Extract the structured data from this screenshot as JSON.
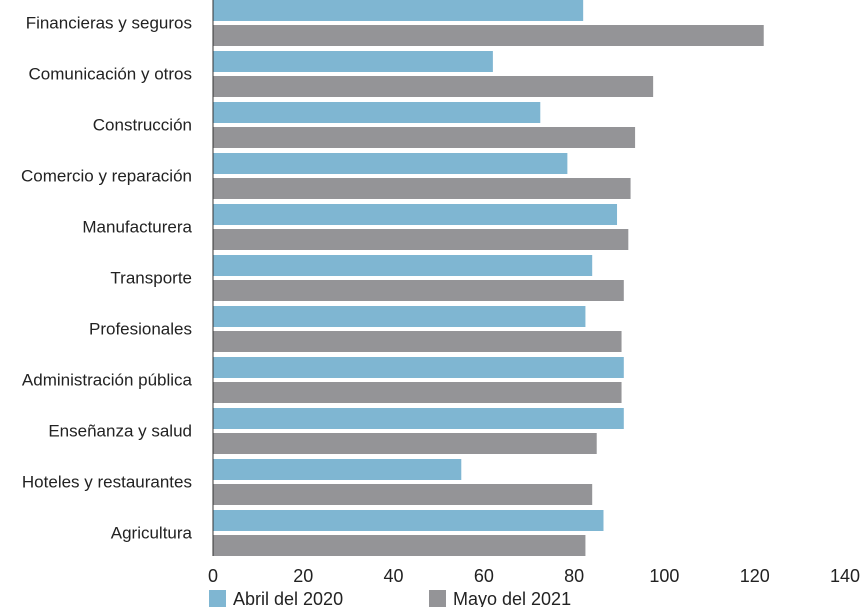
{
  "chart_data": {
    "type": "bar",
    "orientation": "horizontal",
    "categories": [
      "Financieras y seguros",
      "Comunicación y otros",
      "Construcción",
      "Comercio y reparación",
      "Manufacturera",
      "Transporte",
      "Profesionales",
      "Administración pública",
      "Enseñanza y salud",
      "Hoteles y restaurantes",
      "Agricultura"
    ],
    "series": [
      {
        "name": "Abril del 2020",
        "color": "#7fb6d2",
        "values": [
          82,
          62,
          72.5,
          78.5,
          89.5,
          84,
          82.5,
          91,
          91,
          55,
          86.5
        ]
      },
      {
        "name": "Mayo del 2021",
        "color": "#949497",
        "values": [
          122,
          97.5,
          93.5,
          92.5,
          92,
          91,
          90.5,
          90.5,
          85,
          84,
          82.5
        ]
      }
    ],
    "xlim": [
      0,
      140
    ],
    "xticks": [
      0,
      20,
      40,
      60,
      80,
      100,
      120,
      140
    ],
    "grid": false,
    "legend_position": "bottom-left"
  }
}
